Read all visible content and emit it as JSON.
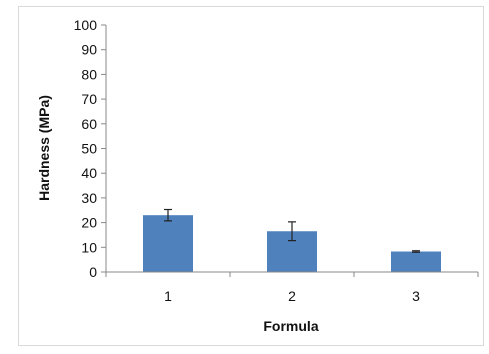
{
  "chart_data": {
    "type": "bar",
    "title": "",
    "xlabel": "Formula",
    "ylabel": "Hardness (MPa)",
    "categories": [
      "1",
      "2",
      "3"
    ],
    "values": [
      23,
      16.5,
      8.3
    ],
    "errors": [
      2.3,
      3.8,
      0.3
    ],
    "ylim": [
      0,
      100
    ],
    "yticks": [
      "0",
      "10",
      "20",
      "30",
      "40",
      "50",
      "60",
      "70",
      "80",
      "90",
      "100"
    ],
    "grid": false,
    "legend": "none",
    "colors": {
      "bar": "#4f81bd",
      "axis": "#888888",
      "error_bar": "#222222"
    }
  }
}
